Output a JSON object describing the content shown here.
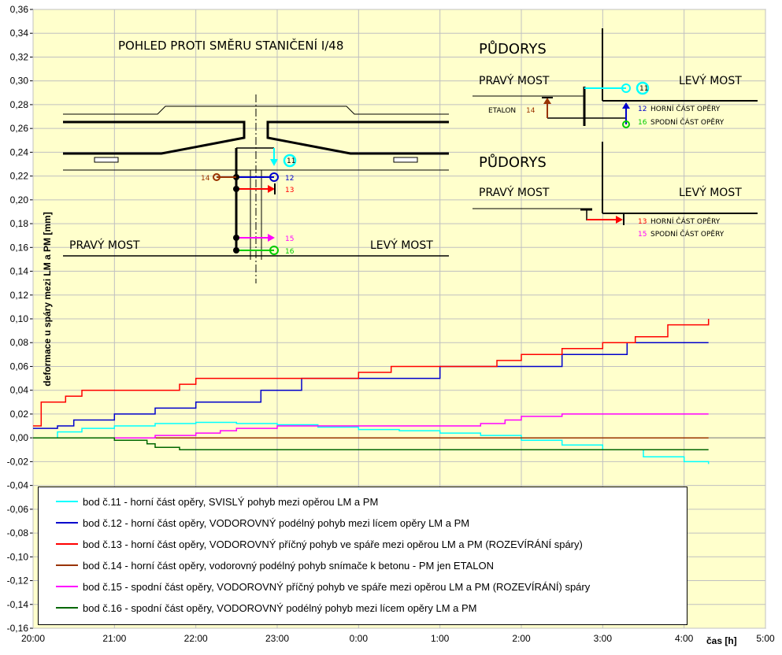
{
  "chart_data": {
    "type": "line",
    "ylabel": "deformace u spáry mezi LM a PM   [mm]",
    "xlabel": "čas [h]",
    "ylim": [
      -0.16,
      0.36
    ],
    "yticks": [
      "0,36",
      "0,34",
      "0,32",
      "0,30",
      "0,28",
      "0,26",
      "0,24",
      "0,22",
      "0,20",
      "0,18",
      "0,16",
      "0,14",
      "0,12",
      "0,10",
      "0,08",
      "0,06",
      "0,04",
      "0,02",
      "0,00",
      "-0,02",
      "-0,04",
      "-0,06",
      "-0,08",
      "-0,10",
      "-0,12",
      "-0,14",
      "-0,16"
    ],
    "xticks": [
      "20:00",
      "21:00",
      "22:00",
      "23:00",
      "0:00",
      "1:00",
      "2:00",
      "3:00",
      "4:00",
      "5:00"
    ],
    "xlim_hours": [
      0,
      9
    ],
    "grid": true,
    "series": [
      {
        "name": "bod č.11 - horní část opěry, SVISLÝ  pohyb mezi opěrou LM a PM",
        "color": "#00ffff",
        "x": [
          0,
          0.3,
          0.6,
          1.0,
          1.5,
          2.0,
          2.5,
          3.0,
          3.5,
          4.0,
          4.5,
          5.0,
          5.5,
          6.0,
          6.5,
          7.0,
          7.5,
          8.0,
          8.3
        ],
        "values": [
          0.0,
          0.005,
          0.008,
          0.01,
          0.012,
          0.013,
          0.012,
          0.011,
          0.009,
          0.007,
          0.006,
          0.004,
          0.002,
          -0.002,
          -0.006,
          -0.01,
          -0.016,
          -0.02,
          -0.022
        ]
      },
      {
        "name": "bod č.12 - horní část opěry, VODOROVNÝ podélný pohyb mezi lícem opěry LM a PM",
        "color": "#0000cc",
        "x": [
          0,
          0.3,
          0.5,
          1.0,
          1.3,
          1.5,
          2.0,
          2.3,
          2.8,
          3.3,
          3.5,
          4.0,
          4.5,
          5.0,
          5.5,
          6.0,
          6.5,
          7.0,
          7.3,
          8.0,
          8.3
        ],
        "values": [
          0.008,
          0.01,
          0.015,
          0.02,
          0.02,
          0.025,
          0.03,
          0.03,
          0.04,
          0.05,
          0.05,
          0.05,
          0.05,
          0.06,
          0.06,
          0.06,
          0.07,
          0.07,
          0.08,
          0.08,
          0.08
        ]
      },
      {
        "name": "bod č.13 - horní část opěry, VODOROVNÝ příčný pohyb ve spáře mezi opěrou LM a PM (ROZEVÍRÁNÍ spáry)",
        "color": "#ff0000",
        "x": [
          0,
          0.1,
          0.4,
          0.6,
          1.0,
          1.5,
          1.8,
          2.0,
          2.5,
          3.0,
          3.5,
          3.9,
          4.0,
          4.4,
          5.0,
          5.5,
          5.7,
          6.0,
          6.5,
          7.0,
          7.4,
          7.8,
          8.3
        ],
        "values": [
          0.01,
          0.03,
          0.035,
          0.04,
          0.04,
          0.04,
          0.045,
          0.05,
          0.05,
          0.05,
          0.05,
          0.05,
          0.055,
          0.06,
          0.06,
          0.06,
          0.065,
          0.07,
          0.075,
          0.08,
          0.085,
          0.095,
          0.1
        ]
      },
      {
        "name": "bod č.14 - horní část opěry, vodorovný podélný pohyb snímače k betonu - PM jen ETALON",
        "color": "#993300",
        "x": [
          0,
          1,
          2,
          3,
          4,
          5,
          6,
          7,
          8,
          8.3
        ],
        "values": [
          0,
          0,
          0,
          0,
          0,
          0,
          0,
          0,
          0,
          0
        ]
      },
      {
        "name": "bod č.15 - spodní část opěry, VODOROVNÝ příčný pohyb ve spáře mezi opěrou LM a PM (ROZEVÍRÁNÍ) spáry",
        "color": "#ff00ff",
        "x": [
          0,
          0.5,
          1.0,
          1.5,
          2.0,
          2.3,
          2.5,
          3.0,
          3.5,
          4.0,
          4.5,
          5.0,
          5.5,
          5.8,
          6.0,
          6.5,
          7.0,
          7.5,
          8.0,
          8.3
        ],
        "values": [
          0.0,
          0.0,
          0.0,
          0.002,
          0.004,
          0.006,
          0.008,
          0.01,
          0.01,
          0.01,
          0.01,
          0.01,
          0.012,
          0.015,
          0.018,
          0.02,
          0.02,
          0.02,
          0.02,
          0.02
        ]
      },
      {
        "name": "bod č.16 - spodní část opěry, VODOROVNÝ podélný pohyb mezi lícem opěry LM a PM",
        "color": "#006600",
        "x": [
          0,
          0.5,
          1.0,
          1.4,
          1.5,
          1.8,
          2.0,
          3.0,
          4.0,
          5.0,
          6.0,
          7.0,
          8.0,
          8.3
        ],
        "values": [
          0.0,
          0.0,
          -0.002,
          -0.005,
          -0.008,
          -0.01,
          -0.01,
          -0.01,
          -0.01,
          -0.01,
          -0.01,
          -0.01,
          -0.01,
          -0.01
        ]
      }
    ]
  },
  "sketch": {
    "title": "POHLED PROTI SMĚRU STANIČENÍ I/48",
    "pudorys_top": "PŮDORYS",
    "pudorys_bottom": "PŮDORYS",
    "pravy_most": "PRAVÝ MOST",
    "levy_most": "LEVÝ MOST",
    "etalon": "ETALON",
    "horni_cast": "HORNÍ ČÁST OPĚRY",
    "spodni_cast": "SPODNÍ ČÁST OPĚRY",
    "n11": "11",
    "n12": "12",
    "n13": "13",
    "n14": "14",
    "n15": "15",
    "n16": "16"
  }
}
